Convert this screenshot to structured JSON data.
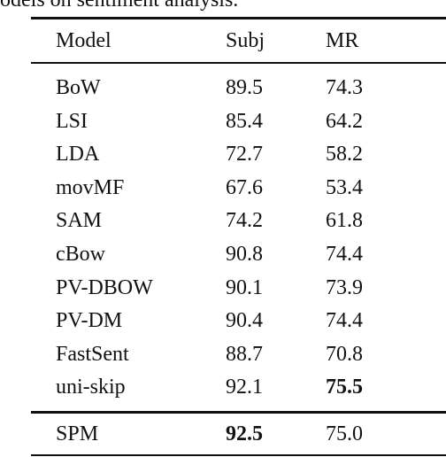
{
  "caption": "odels on sentiment analysis.",
  "table": {
    "header": [
      "Model",
      "Subj",
      "MR"
    ],
    "rows": [
      [
        "BoW",
        "89.5",
        "74.3"
      ],
      [
        "LSI",
        "85.4",
        "64.2"
      ],
      [
        "LDA",
        "72.7",
        "58.2"
      ],
      [
        "movMF",
        "67.6",
        "53.4"
      ],
      [
        "SAM",
        "74.2",
        "61.8"
      ],
      [
        "cBow",
        "90.8",
        "74.4"
      ],
      [
        "PV-DBOW",
        "90.1",
        "73.9"
      ],
      [
        "PV-DM",
        "90.4",
        "74.4"
      ],
      [
        "FastSent",
        "88.7",
        "70.8"
      ],
      [
        "uni-skip",
        "92.1",
        "75.5"
      ]
    ],
    "footer_rows": [
      [
        "SPM",
        "92.5",
        "75.0"
      ]
    ]
  }
}
